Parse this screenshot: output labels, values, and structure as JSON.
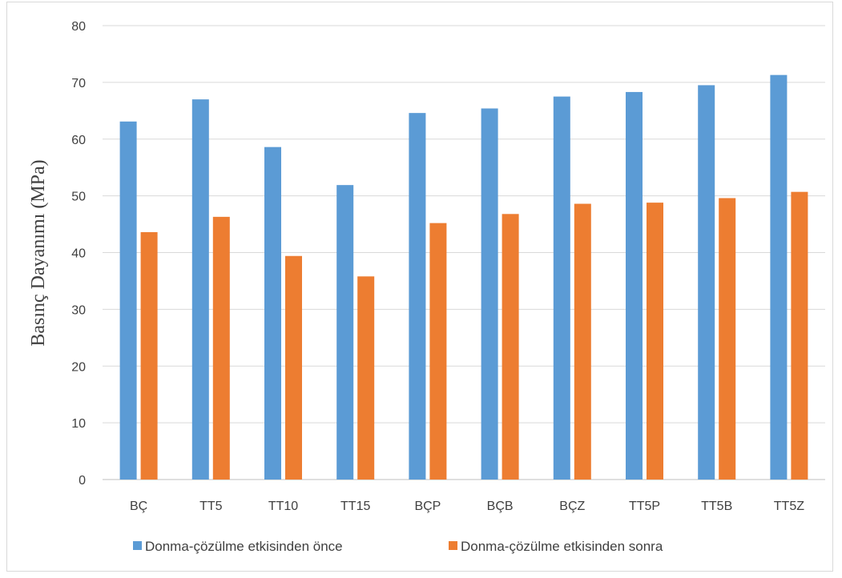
{
  "chart_data": {
    "type": "bar",
    "title": "",
    "xlabel": "",
    "ylabel": "Basınç  Dayanımı (MPa)",
    "ylim": [
      0,
      80
    ],
    "yticks": [
      0,
      10,
      20,
      30,
      40,
      50,
      60,
      70,
      80
    ],
    "grid": true,
    "legend_position": "bottom",
    "categories": [
      "BÇ",
      "TT5",
      "TT10",
      "TT15",
      "BÇP",
      "BÇB",
      "BÇZ",
      "TT5P",
      "TT5B",
      "TT5Z"
    ],
    "series": [
      {
        "name": "Donma-çözülme etkisinden önce",
        "color": "#5b9bd5",
        "values": [
          63.1,
          67.0,
          58.6,
          51.9,
          64.6,
          65.4,
          67.5,
          68.3,
          69.5,
          71.3
        ]
      },
      {
        "name": "Donma-çözülme etkisinden sonra",
        "color": "#ed7d31",
        "values": [
          43.6,
          46.3,
          39.4,
          35.8,
          45.2,
          46.8,
          48.6,
          48.8,
          49.6,
          50.7
        ]
      }
    ]
  }
}
